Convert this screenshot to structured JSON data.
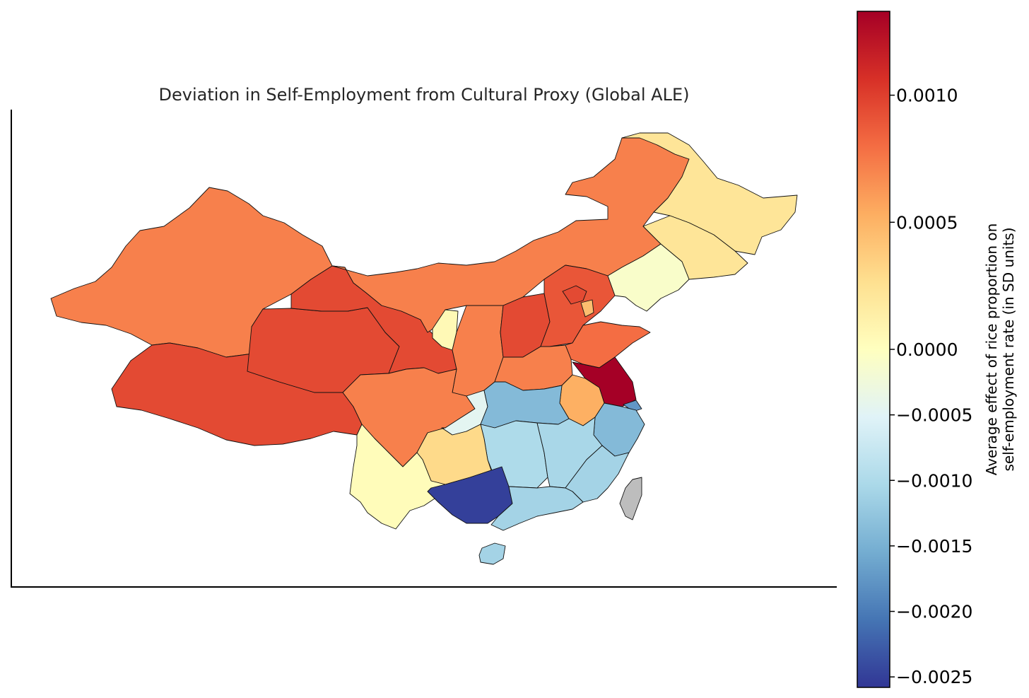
{
  "title": "Deviation in Self-Employment from Cultural Proxy (Global ALE)",
  "colorbar": {
    "label_line1": "Average effect of rice proportion on",
    "label_line2": "self-employment rate (in SD units)",
    "colormap": "RdYlBu_r",
    "range": [
      -0.00258,
      0.00133
    ],
    "ticks": [
      {
        "value": 0.001,
        "label": "0.0010"
      },
      {
        "value": 0.0005,
        "label": "0.0005"
      },
      {
        "value": 0.0,
        "label": "0.0000"
      },
      {
        "value": -0.0005,
        "label": "−0.0005"
      },
      {
        "value": -0.001,
        "label": "−0.0010"
      },
      {
        "value": -0.0015,
        "label": "−0.0015"
      },
      {
        "value": -0.002,
        "label": "−0.0020"
      },
      {
        "value": -0.0025,
        "label": "−0.0025"
      }
    ]
  },
  "no_data_color": "#bdbdbd",
  "regions": [
    {
      "name": "Xinjiang",
      "value": 0.00072
    },
    {
      "name": "Tibet",
      "value": 0.00095
    },
    {
      "name": "Qinghai",
      "value": 0.00095
    },
    {
      "name": "Gansu",
      "value": 0.00095
    },
    {
      "name": "Inner Mongolia",
      "value": 0.00072
    },
    {
      "name": "Heilongjiang",
      "value": 0.00022
    },
    {
      "name": "Jilin",
      "value": 0.00022
    },
    {
      "name": "Liaoning",
      "value": -0.0001
    },
    {
      "name": "Ningxia",
      "value": 5e-05
    },
    {
      "name": "Shaanxi",
      "value": 0.00072
    },
    {
      "name": "Shanxi",
      "value": 0.00095
    },
    {
      "name": "Hebei",
      "value": 0.0009
    },
    {
      "name": "Beijing",
      "value": 0.00095
    },
    {
      "name": "Tianjin",
      "value": 0.00045
    },
    {
      "name": "Shandong",
      "value": 0.0008
    },
    {
      "name": "Henan",
      "value": 0.00072
    },
    {
      "name": "Jiangsu",
      "value": 0.00133
    },
    {
      "name": "Shanghai",
      "value": -0.00175
    },
    {
      "name": "Anhui",
      "value": 0.00052
    },
    {
      "name": "Sichuan",
      "value": 0.00072
    },
    {
      "name": "Chongqing",
      "value": -0.00045
    },
    {
      "name": "Hubei",
      "value": -0.0014
    },
    {
      "name": "Zhejiang",
      "value": -0.0014
    },
    {
      "name": "Hunan",
      "value": -0.001
    },
    {
      "name": "Jiangxi",
      "value": -0.00105
    },
    {
      "name": "Fujian",
      "value": -0.0011
    },
    {
      "name": "Guizhou",
      "value": 0.0003
    },
    {
      "name": "Yunnan",
      "value": 3e-05
    },
    {
      "name": "Guangxi",
      "value": -0.0025
    },
    {
      "name": "Guangdong",
      "value": -0.0011
    },
    {
      "name": "Hainan",
      "value": -0.0011
    },
    {
      "name": "Taiwan",
      "value": null
    }
  ]
}
